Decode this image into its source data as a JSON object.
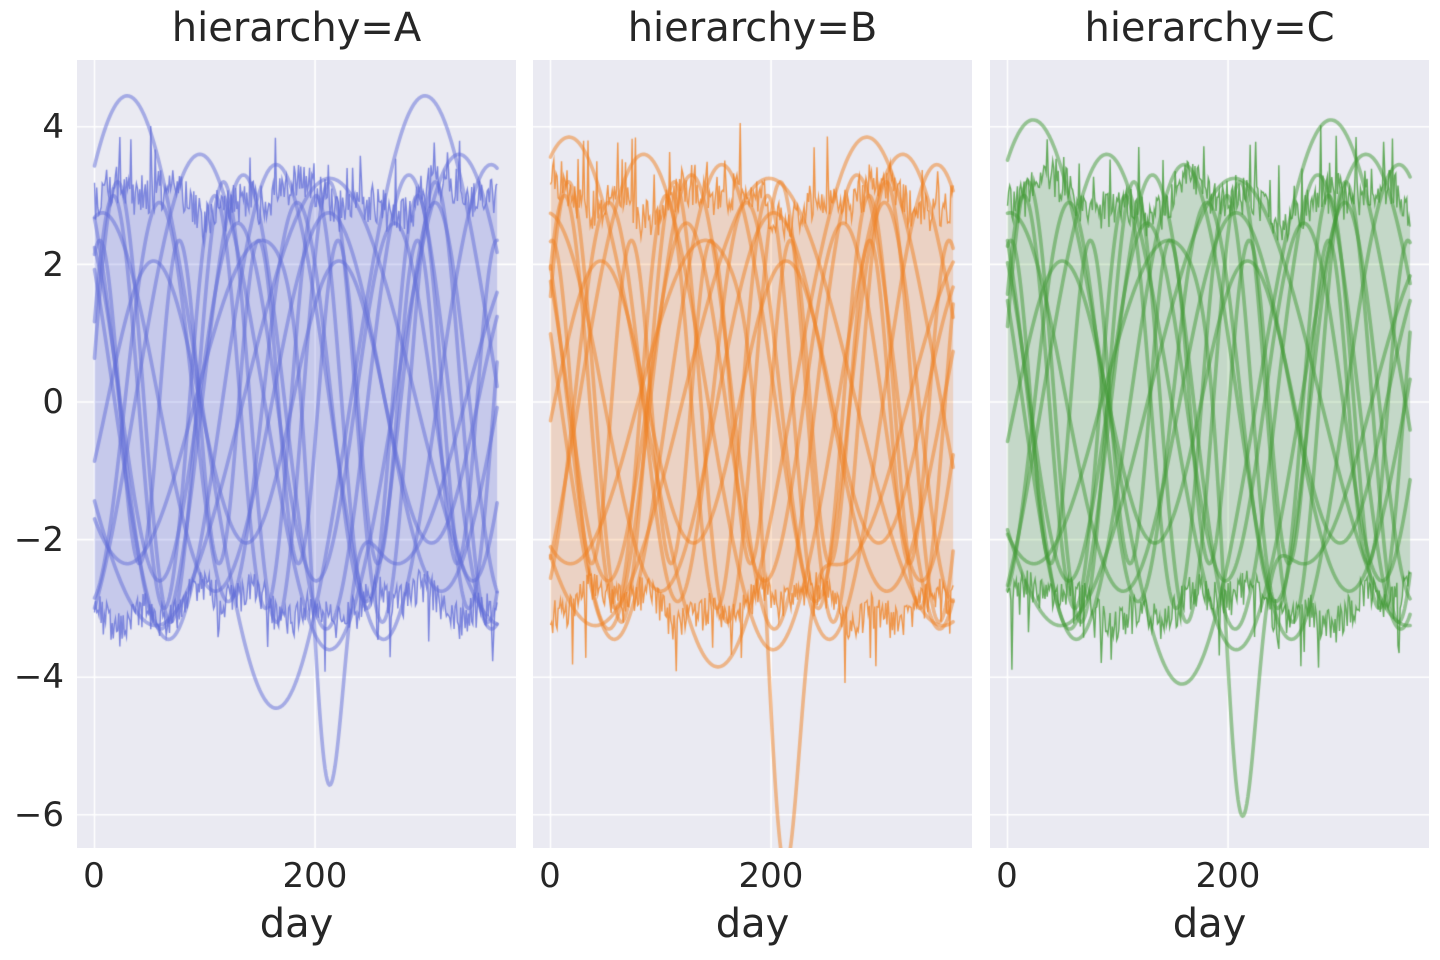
{
  "figure": {
    "xlabel": "day",
    "x_tick_labels": [
      "0",
      "200"
    ],
    "y_tick_labels": [
      "4",
      "2",
      "0",
      "−2",
      "−4",
      "−6"
    ],
    "background": "#ffffff",
    "axes_background": "#eaeaf2",
    "grid_color": "#ffffff",
    "text_color": "#262626"
  },
  "facets": [
    {
      "title": "hierarchy=A",
      "line_color": "#5f6bd8",
      "line_rgb": [
        95,
        107,
        216
      ],
      "fill_color": "rgba(95,107,216,0.26)",
      "seed": 11,
      "phase_shift": 0,
      "big_amp": 4.45,
      "dip_depth": 5.65
    },
    {
      "title": "hierarchy=B",
      "line_color": "#f0801f",
      "line_rgb": [
        240,
        128,
        31
      ],
      "fill_color": "rgba(240,128,31,0.22)",
      "seed": 23,
      "phase_shift": 0.3,
      "big_amp": 3.85,
      "dip_depth": 6.15
    },
    {
      "title": "hierarchy=C",
      "line_color": "#3f9933",
      "line_rgb": [
        63,
        153,
        51
      ],
      "fill_color": "rgba(63,153,51,0.22)",
      "seed": 37,
      "phase_shift": 0.15,
      "big_amp": 4.1,
      "dip_depth": 5.75
    }
  ],
  "chart_data": {
    "type": "line",
    "xlabel": "day",
    "facet_titles": [
      "hierarchy=A",
      "hierarchy=B",
      "hierarchy=C"
    ],
    "x_range": [
      0,
      365
    ],
    "x_ticks": [
      0,
      200
    ],
    "y_ticks": [
      4,
      2,
      0,
      -2,
      -4,
      -6
    ],
    "ylim": [
      -6.5,
      5.0
    ],
    "grid": true,
    "legend": false,
    "band": {
      "top_center": 2.92,
      "bottom_center": -2.92,
      "jag_amplitude": 0.62,
      "spike_chance": 0.05,
      "spike_amplitude": 0.55,
      "note": "noisy filled band between about -3 and +3 with jagged edges"
    },
    "series": [
      {
        "amp": 4.45,
        "period_days": 270,
        "phase_rad": 0.88,
        "note": "amp replaced per facet by big_amp; peak ~day 30, trough ~day 165"
      },
      {
        "amp": 3.45,
        "period_days": 195,
        "phase_rad": 2.55
      },
      {
        "amp": 3.0,
        "period_days": 92,
        "phase_rad": 0.4
      },
      {
        "amp": 2.6,
        "period_days": 142,
        "phase_rad": 2.1
      },
      {
        "amp": 3.25,
        "period_days": 315,
        "phase_rad": 3.6
      },
      {
        "amp": 2.9,
        "period_days": 125,
        "phase_rad": 4.9
      },
      {
        "amp": 2.35,
        "period_days": 72,
        "phase_rad": 1.15
      },
      {
        "amp": 3.6,
        "period_days": 235,
        "phase_rad": 5.3
      },
      {
        "amp": 3.2,
        "period_days": 96,
        "phase_rad": 0.2
      },
      {
        "amp": 3.3,
        "period_days": 150,
        "phase_rad": 2.2
      },
      {
        "amp": 2.05,
        "period_days": 168,
        "phase_rad": 5.85
      },
      {
        "amp": 2.75,
        "period_days": 205,
        "phase_rad": 1.35
      }
    ],
    "dip_series": {
      "amp": 2.35,
      "period_days": 245,
      "phase_rad": 3.95,
      "dip_center_day": 211,
      "dip_width_days": 20.5,
      "dip_depth_per_facet": [
        5.65,
        6.15,
        5.75
      ],
      "note": "curve that plunges to about -5.5 / -6 near day 211 in every facet"
    }
  }
}
